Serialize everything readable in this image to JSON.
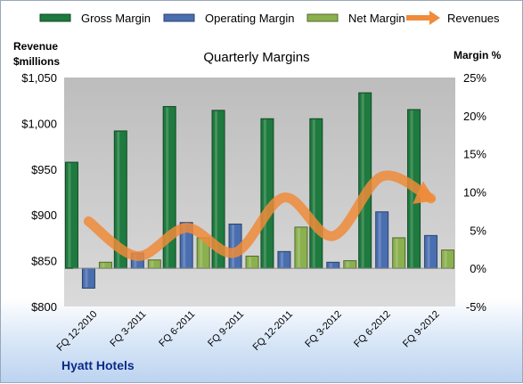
{
  "chart_data": {
    "type": "bar",
    "title": "Quarterly Margins",
    "company": "Hyatt Hotels",
    "ylabel_left": [
      "Revenue",
      "$millions"
    ],
    "ylabel_right": "Margin %",
    "legend_position": "top",
    "grid": false,
    "categories": [
      "FQ 12-2010",
      "FQ 3-2011",
      "FQ 6-2011",
      "FQ 9-2011",
      "FQ 12-2011",
      "FQ 3-2012",
      "FQ 6-2012",
      "FQ 9-2012"
    ],
    "left_axis": {
      "ylim": [
        800,
        1050
      ],
      "ticks": [
        800,
        850,
        900,
        950,
        1000,
        1050
      ],
      "tick_labels": [
        "$800",
        "$850",
        "$900",
        "$950",
        "$1,000",
        "$1,050"
      ]
    },
    "right_axis": {
      "ylim": [
        -5,
        25
      ],
      "ticks": [
        -5,
        0,
        5,
        10,
        15,
        20,
        25
      ],
      "tick_labels": [
        "-5%",
        "0%",
        "5%",
        "10%",
        "15%",
        "20%",
        "25%"
      ]
    },
    "series": [
      {
        "name": "Gross Margin",
        "type": "bar",
        "axis": "right",
        "color": "#1e7a3e",
        "values": [
          13.9,
          18.0,
          21.2,
          20.7,
          19.6,
          19.6,
          23.0,
          20.8
        ]
      },
      {
        "name": "Operating Margin",
        "type": "bar",
        "axis": "right",
        "color": "#4a6fb0",
        "values": [
          -2.6,
          2.0,
          6.0,
          5.8,
          2.2,
          0.8,
          7.4,
          4.3
        ]
      },
      {
        "name": "Net Margin",
        "type": "bar",
        "axis": "right",
        "color": "#8bb04e",
        "values": [
          0.8,
          1.1,
          4.0,
          1.6,
          5.4,
          1.0,
          4.0,
          2.4
        ]
      },
      {
        "name": "Revenues",
        "type": "line",
        "axis": "left",
        "color": "#ef8b3a",
        "values": [
          893,
          855,
          886,
          859,
          919,
          877,
          942,
          918
        ]
      }
    ]
  }
}
